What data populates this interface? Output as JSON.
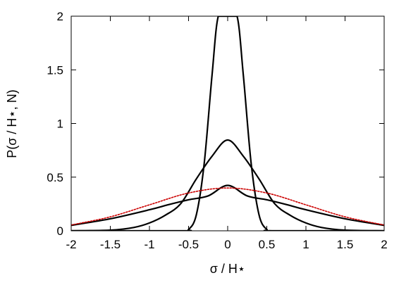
{
  "chart_data": {
    "type": "line",
    "xlabel": "σ / H⋆",
    "ylabel": "P(σ / H⋆, N)",
    "xlim": [
      -2,
      2
    ],
    "ylim": [
      0,
      2
    ],
    "x_ticks": [
      -2,
      -1.5,
      -1,
      -0.5,
      0,
      0.5,
      1,
      1.5,
      2
    ],
    "x_tick_labels": [
      "-2",
      "-1.5",
      "-1",
      "-0.5",
      "0",
      "0.5",
      "1",
      "1.5",
      "2"
    ],
    "y_ticks": [
      0,
      0.5,
      1,
      1.5,
      2
    ],
    "y_tick_labels": [
      "0",
      "0.5",
      "1",
      "1.5",
      "2"
    ],
    "grid": false,
    "legend": "none",
    "series": [
      {
        "color": "#000000",
        "style": "solid",
        "x": [
          -2,
          -1.5,
          -1,
          -0.75,
          -0.5,
          -0.25,
          0,
          0.25,
          0.5,
          0.75,
          1,
          1.5,
          2
        ],
        "y": [
          0.051,
          0.112,
          0.196,
          0.245,
          0.289,
          0.325,
          0.423,
          0.325,
          0.289,
          0.245,
          0.196,
          0.112,
          0.051
        ]
      },
      {
        "color": "#000000",
        "style": "solid",
        "x": [
          -2,
          -1.5,
          -1.2,
          -1,
          -0.8,
          -0.6,
          -0.4,
          -0.2,
          0,
          0.2,
          0.4,
          0.6,
          0.8,
          1,
          1.2,
          1.5,
          2
        ],
        "y": [
          0.0,
          0.006,
          0.031,
          0.073,
          0.144,
          0.253,
          0.484,
          0.695,
          0.846,
          0.695,
          0.484,
          0.253,
          0.144,
          0.073,
          0.031,
          0.006,
          0.0
        ],
        "vertical_bars": [
          -0.55,
          0.55
        ]
      },
      {
        "color": "#000000",
        "style": "solid",
        "x": [
          -2,
          -0.6,
          -0.5,
          -0.4,
          -0.3,
          -0.2,
          -0.12,
          0,
          0.12,
          0.2,
          0.3,
          0.4,
          0.5,
          0.6,
          2
        ],
        "y": [
          0.0,
          0.0,
          0.012,
          0.151,
          0.628,
          1.45,
          2.0,
          2.0,
          2.0,
          1.45,
          0.628,
          0.151,
          0.012,
          0.0,
          0.0
        ]
      },
      {
        "color": "#cc0000",
        "style": "dotted",
        "x": [
          -2,
          -1.5,
          -1,
          -0.5,
          0,
          0.5,
          1,
          1.5,
          2
        ],
        "y": [
          0.054,
          0.13,
          0.242,
          0.352,
          0.399,
          0.352,
          0.242,
          0.13,
          0.054
        ]
      }
    ]
  }
}
